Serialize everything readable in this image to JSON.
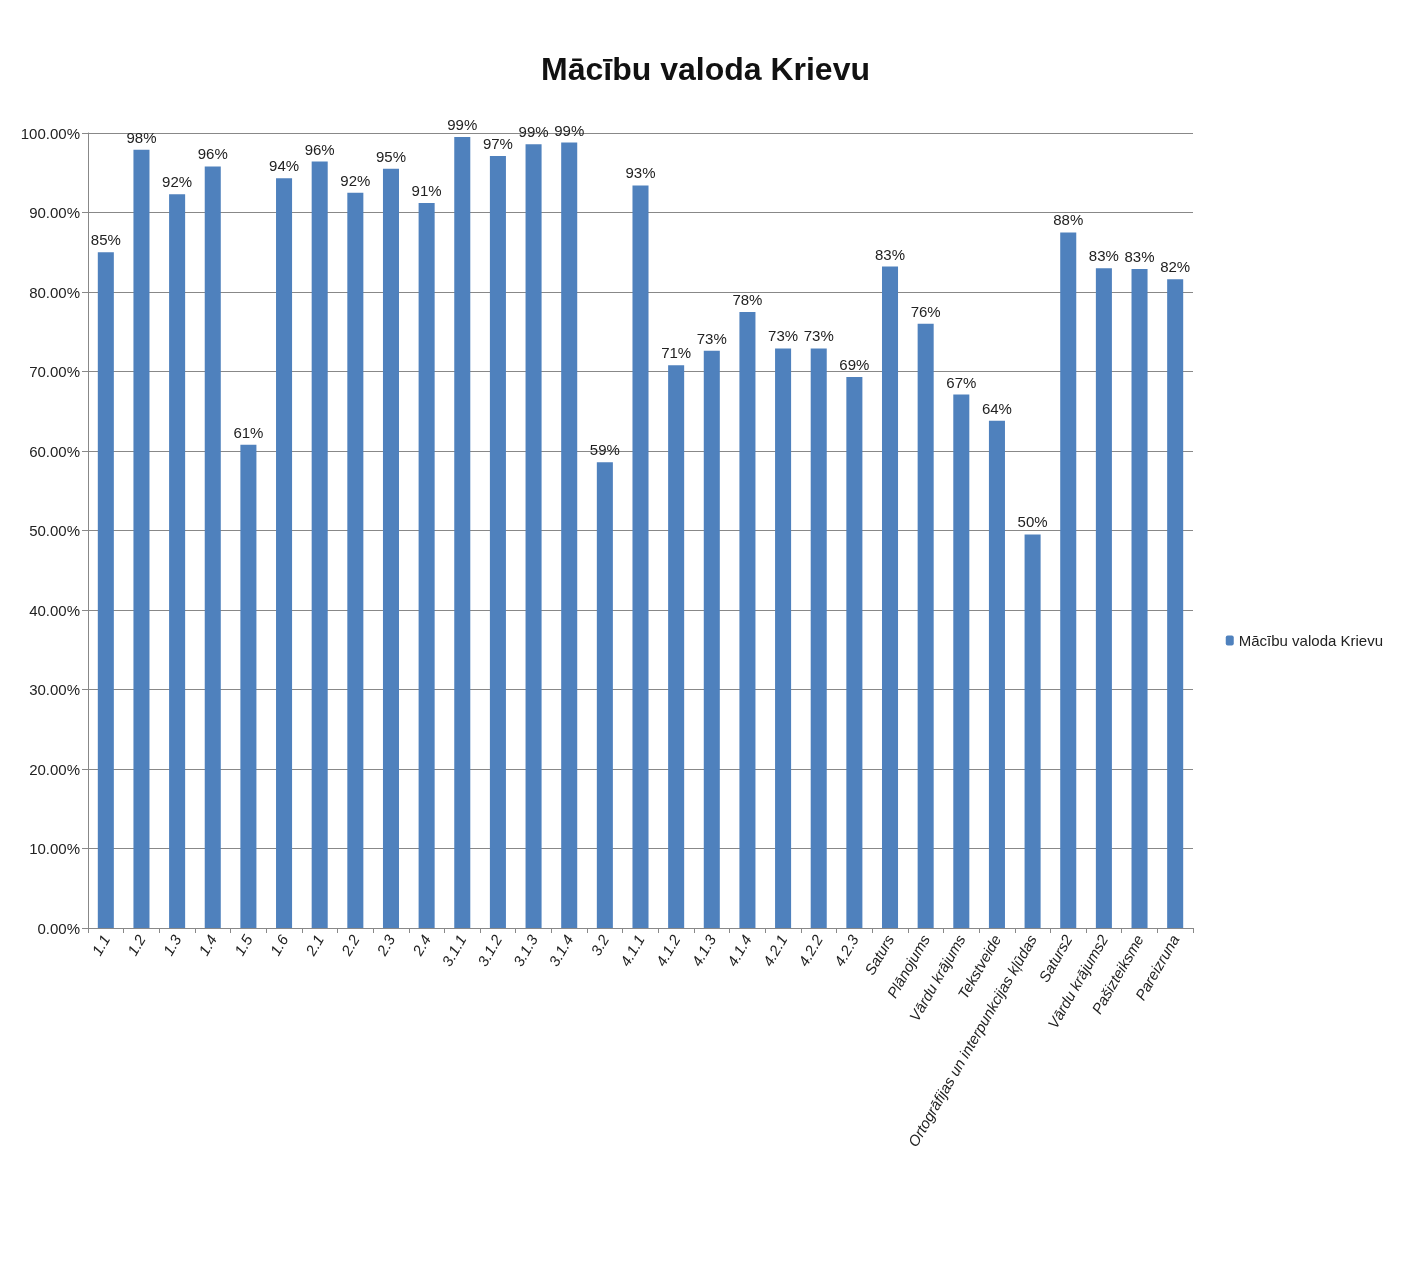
{
  "chart_data": {
    "type": "bar",
    "title": "Mācību valoda Krievu",
    "categories": [
      "1.1",
      "1.2",
      "1.3",
      "1.4",
      "1.5",
      "1.6",
      "2.1",
      "2.2",
      "2.3",
      "2.4",
      "3.1.1",
      "3.1.2",
      "3.1.3",
      "3.1.4",
      "3.2",
      "4.1.1",
      "4.1.2",
      "4.1.3",
      "4.1.4",
      "4.2.1",
      "4.2.2",
      "4.2.3",
      "Saturs",
      "Plānojums",
      "Vārdu krājums",
      "Tekstveide",
      "Ortogrāfijas un interpunkcijas kļūdas",
      "Saturs2",
      "Vārdu krājums2",
      "Pašizteiksme",
      "Pareizruna"
    ],
    "series": [
      {
        "name": "Mācību valoda Krievu",
        "color": "#4f81bd",
        "values": [
          85.0,
          97.9,
          92.3,
          95.8,
          60.8,
          94.3,
          96.4,
          92.5,
          95.5,
          91.2,
          99.5,
          97.1,
          98.6,
          98.8,
          58.6,
          93.4,
          70.8,
          72.6,
          77.5,
          72.9,
          72.9,
          69.3,
          83.2,
          76.0,
          67.1,
          63.8,
          49.5,
          87.5,
          83.0,
          82.9,
          81.6
        ],
        "value_labels": [
          "85%",
          "98%",
          "92%",
          "96%",
          "61%",
          "94%",
          "96%",
          "92%",
          "95%",
          "91%",
          "99%",
          "97%",
          "99%",
          "99%",
          "59%",
          "93%",
          "71%",
          "73%",
          "78%",
          "73%",
          "73%",
          "69%",
          "83%",
          "76%",
          "67%",
          "64%",
          "50%",
          "88%",
          "83%",
          "83%",
          "82%"
        ]
      }
    ],
    "ylim": [
      0,
      100
    ],
    "yticks": [
      {
        "value": 0,
        "label": "0.00%"
      },
      {
        "value": 10,
        "label": "10.00%"
      },
      {
        "value": 20,
        "label": "20.00%"
      },
      {
        "value": 30,
        "label": "30.00%"
      },
      {
        "value": 40,
        "label": "40.00%"
      },
      {
        "value": 50,
        "label": "50.00%"
      },
      {
        "value": 60,
        "label": "60.00%"
      },
      {
        "value": 70,
        "label": "70.00%"
      },
      {
        "value": 80,
        "label": "80.00%"
      },
      {
        "value": 90,
        "label": "90.00%"
      },
      {
        "value": 100,
        "label": "100.00%"
      }
    ],
    "grid": "y",
    "legend": "right"
  }
}
